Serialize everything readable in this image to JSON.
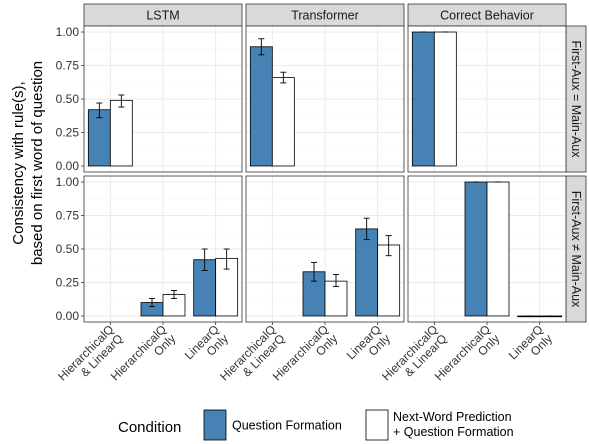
{
  "chart_data": {
    "type": "bar",
    "ylabel_lines": [
      "Consistency with rule(s),",
      "based on first word of question"
    ],
    "ylim": [
      0,
      1
    ],
    "yticks": [
      0.0,
      0.25,
      0.5,
      0.75,
      1.0
    ],
    "ytick_labels": [
      "0.00",
      "0.25",
      "0.50",
      "0.75",
      "1.00"
    ],
    "categories": [
      [
        "HierarchicalQ",
        "& LinearQ"
      ],
      [
        "HierarchicalQ",
        "Only"
      ],
      [
        "LinearQ",
        "Only"
      ]
    ],
    "columns": [
      "LSTM",
      "Transformer",
      "Correct Behavior"
    ],
    "rows": [
      "First-Aux = Main-Aux",
      "First-Aux ≠ Main-Aux"
    ],
    "legend": {
      "title": "Condition",
      "position": "bottom",
      "entries": [
        {
          "name": "Question Formation",
          "lines": [
            "Question Formation"
          ],
          "color": "#4682B4"
        },
        {
          "name": "Next-Word Prediction + Question Formation",
          "lines": [
            "Next-Word Prediction",
            "+ Question Formation"
          ],
          "color": "#FFFFFF"
        }
      ]
    },
    "grid": true,
    "panels": [
      {
        "row": 0,
        "col": 0,
        "bars": [
          {
            "cat": 0,
            "series": 0,
            "value": 0.42,
            "err": [
              0.36,
              0.47
            ]
          },
          {
            "cat": 0,
            "series": 1,
            "value": 0.49,
            "err": [
              0.44,
              0.53
            ]
          }
        ]
      },
      {
        "row": 0,
        "col": 1,
        "bars": [
          {
            "cat": 0,
            "series": 0,
            "value": 0.89,
            "err": [
              0.83,
              0.95
            ]
          },
          {
            "cat": 0,
            "series": 1,
            "value": 0.66,
            "err": [
              0.62,
              0.7
            ]
          }
        ]
      },
      {
        "row": 0,
        "col": 2,
        "bars": [
          {
            "cat": 0,
            "series": 0,
            "value": 1.0,
            "err": [
              1.0,
              1.0
            ]
          },
          {
            "cat": 0,
            "series": 1,
            "value": 1.0,
            "err": [
              1.0,
              1.0
            ]
          }
        ]
      },
      {
        "row": 1,
        "col": 0,
        "bars": [
          {
            "cat": 1,
            "series": 0,
            "value": 0.1,
            "err": [
              0.07,
              0.13
            ]
          },
          {
            "cat": 1,
            "series": 1,
            "value": 0.16,
            "err": [
              0.13,
              0.19
            ]
          },
          {
            "cat": 2,
            "series": 0,
            "value": 0.42,
            "err": [
              0.34,
              0.5
            ]
          },
          {
            "cat": 2,
            "series": 1,
            "value": 0.43,
            "err": [
              0.35,
              0.5
            ]
          }
        ]
      },
      {
        "row": 1,
        "col": 1,
        "bars": [
          {
            "cat": 1,
            "series": 0,
            "value": 0.33,
            "err": [
              0.26,
              0.4
            ]
          },
          {
            "cat": 1,
            "series": 1,
            "value": 0.26,
            "err": [
              0.22,
              0.31
            ]
          },
          {
            "cat": 2,
            "series": 0,
            "value": 0.65,
            "err": [
              0.57,
              0.73
            ]
          },
          {
            "cat": 2,
            "series": 1,
            "value": 0.53,
            "err": [
              0.45,
              0.6
            ]
          }
        ]
      },
      {
        "row": 1,
        "col": 2,
        "bars": [
          {
            "cat": 1,
            "series": 0,
            "value": 1.0,
            "err": [
              1.0,
              1.0
            ]
          },
          {
            "cat": 1,
            "series": 1,
            "value": 1.0,
            "err": [
              1.0,
              1.0
            ]
          },
          {
            "cat": 2,
            "series": 0,
            "value": 0.0,
            "err": [
              0.0,
              0.0
            ]
          },
          {
            "cat": 2,
            "series": 1,
            "value": 0.0,
            "err": [
              0.0,
              0.0
            ]
          }
        ]
      }
    ]
  }
}
